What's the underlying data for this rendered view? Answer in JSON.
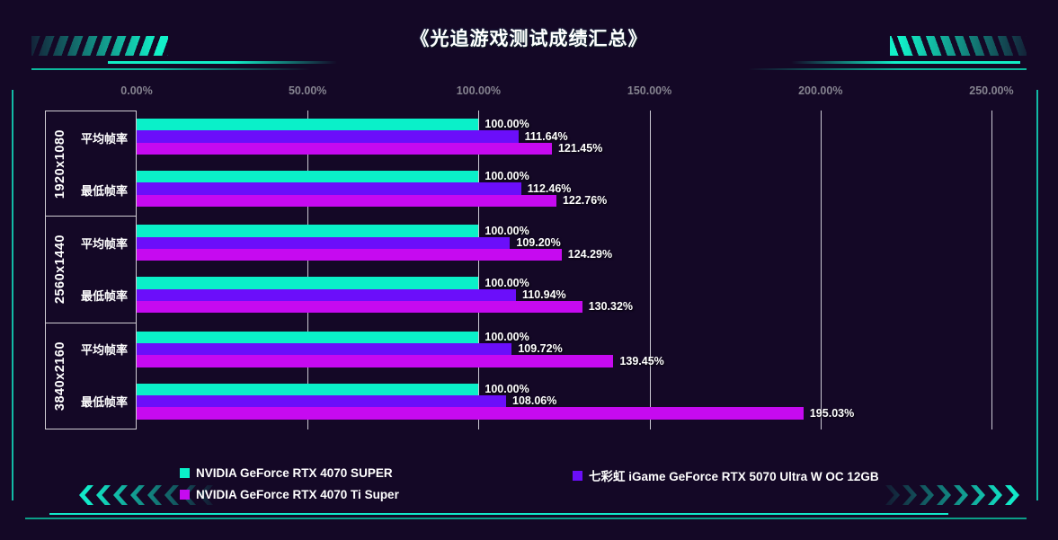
{
  "page": {
    "title": "《光追游戏测试成绩汇总》",
    "colors": {
      "background": "#140826",
      "accent_teal": "#12E8C8",
      "gridline": "#EBEBF2",
      "tick_text": "#85838F",
      "label_text": "#FFFFFF"
    }
  },
  "chart_data": {
    "type": "bar",
    "orientation": "horizontal",
    "title": "《光追游戏测试成绩汇总》",
    "unit": "%",
    "x_axis": {
      "ticks": [
        "0.00%",
        "50.00%",
        "100.00%",
        "150.00%",
        "200.00%",
        "250.00%"
      ],
      "tick_values": [
        0,
        50,
        100,
        150,
        200,
        250
      ],
      "range": [
        0,
        260
      ],
      "grid": true
    },
    "series": [
      {
        "name": "NVIDIA GeForce RTX 4070 SUPER",
        "color": "#0AF0C9"
      },
      {
        "name": "七彩虹 iGame GeForce RTX 5070 Ultra W OC 12GB",
        "color": "#6B0EFA"
      },
      {
        "name": "NVIDIA GeForce RTX 4070 Ti Super",
        "color": "#C60AF0"
      }
    ],
    "groups": [
      {
        "resolution": "1920x1080",
        "rows": [
          {
            "label": "平均帧率",
            "values": [
              100.0,
              111.64,
              121.45
            ],
            "display": [
              "100.00%",
              "111.64%",
              "121.45%"
            ]
          },
          {
            "label": "最低帧率",
            "values": [
              100.0,
              112.46,
              122.76
            ],
            "display": [
              "100.00%",
              "112.46%",
              "122.76%"
            ]
          }
        ]
      },
      {
        "resolution": "2560x1440",
        "rows": [
          {
            "label": "平均帧率",
            "values": [
              100.0,
              109.2,
              124.29
            ],
            "display": [
              "100.00%",
              "109.20%",
              "124.29%"
            ]
          },
          {
            "label": "最低帧率",
            "values": [
              100.0,
              110.94,
              130.32
            ],
            "display": [
              "100.00%",
              "110.94%",
              "130.32%"
            ]
          }
        ]
      },
      {
        "resolution": "3840x2160",
        "rows": [
          {
            "label": "平均帧率",
            "values": [
              100.0,
              109.72,
              139.45
            ],
            "display": [
              "100.00%",
              "109.72%",
              "139.45%"
            ]
          },
          {
            "label": "最低帧率",
            "values": [
              100.0,
              108.06,
              195.03
            ],
            "display": [
              "100.00%",
              "108.06%",
              "195.03%"
            ]
          }
        ]
      }
    ],
    "legend": {
      "columns": [
        [
          0,
          2
        ],
        [
          1
        ]
      ]
    }
  }
}
